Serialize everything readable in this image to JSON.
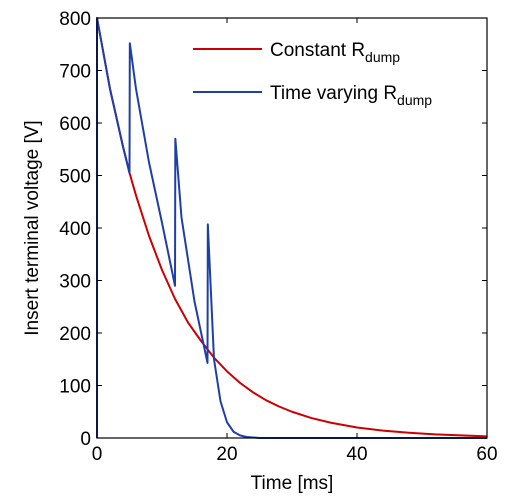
{
  "chart_data": {
    "type": "line",
    "xlabel": "Time [ms]",
    "ylabel": "Insert terminal voltage [V]",
    "xlim": [
      0,
      60
    ],
    "ylim": [
      0,
      800
    ],
    "x_ticks": [
      "0",
      "20",
      "40",
      "60"
    ],
    "y_ticks": [
      "0",
      "100",
      "200",
      "300",
      "400",
      "500",
      "600",
      "700",
      "800"
    ],
    "grid": false,
    "legend_position": "top-right",
    "series": [
      {
        "name_main": "Constant R",
        "name_sub": "dump",
        "color": "#cc0000",
        "x": [
          0,
          0,
          2,
          4,
          5,
          6,
          8,
          10,
          12,
          14,
          16,
          18,
          20,
          22,
          24,
          26,
          28,
          30,
          33,
          36,
          40,
          44,
          48,
          52,
          56,
          60
        ],
        "y": [
          0,
          800,
          665,
          555,
          505,
          462,
          385,
          320,
          265,
          220,
          185,
          153,
          127,
          105,
          87,
          72,
          60,
          50,
          38,
          29,
          20,
          14,
          10,
          7,
          5,
          3
        ]
      },
      {
        "name_main": "Time varying R",
        "name_sub": "dump",
        "color": "#1f3fa8",
        "x": [
          0,
          0,
          2,
          4,
          5,
          5.05,
          6,
          8,
          10,
          12,
          12.05,
          13,
          15,
          17,
          17.05,
          18,
          19,
          20,
          21,
          22,
          23,
          24,
          25,
          60
        ],
        "y": [
          0,
          800,
          665,
          555,
          505,
          752,
          665,
          525,
          410,
          290,
          570,
          420,
          260,
          143,
          407,
          150,
          70,
          30,
          12,
          5,
          2,
          1,
          0,
          0
        ]
      }
    ]
  }
}
